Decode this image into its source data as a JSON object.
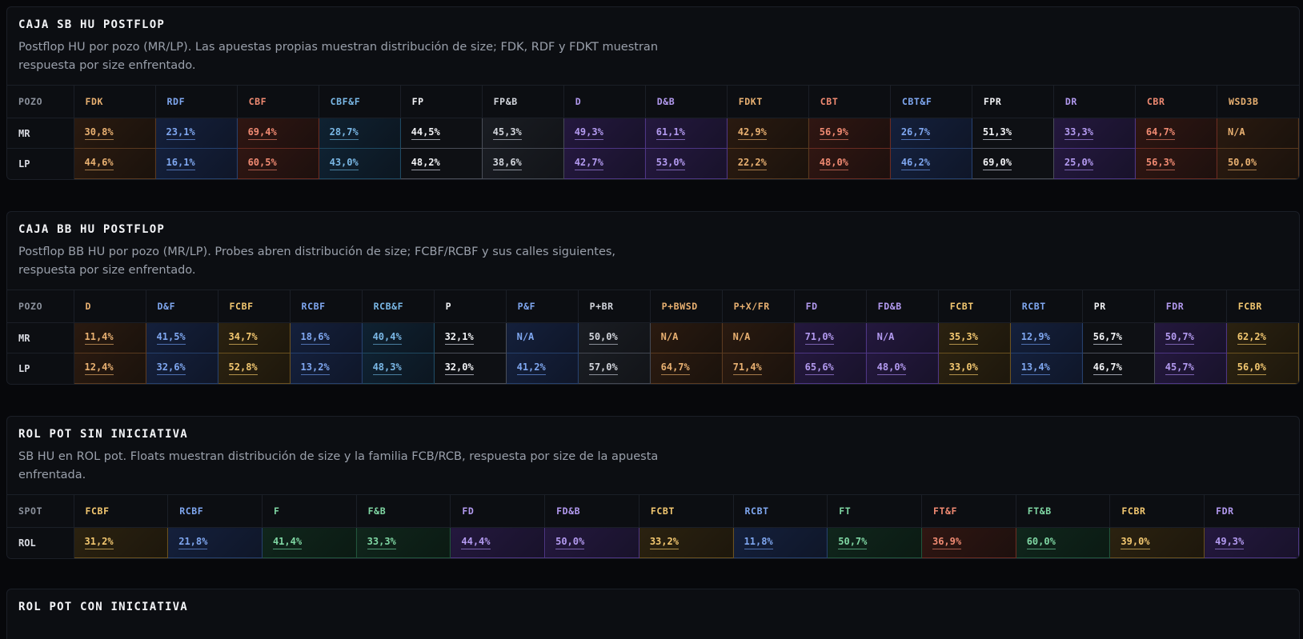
{
  "colors": {
    "background": "#07080b",
    "panel": "#0c0e12",
    "orange": "#e8b071",
    "blue": "#7fa7f0",
    "red": "#f08a72",
    "cyan": "#7ab8e6",
    "white": "#f1f2f5",
    "grey": "#d2d5dc",
    "purple": "#b39af0",
    "gold": "#f2c770",
    "green": "#7fd6a3"
  },
  "panels": [
    {
      "title": "CAJA SB HU POSTFLOP",
      "description": "Postflop HU por pozo (MR/LP). Las apuestas propias muestran distribución de size; FDK, RDF y FDKT muestran respuesta por size enfrentado.",
      "row_header": "POZO",
      "columns": [
        {
          "label": "FDK",
          "color": "orange"
        },
        {
          "label": "RDF",
          "color": "blue"
        },
        {
          "label": "CBF",
          "color": "red"
        },
        {
          "label": "CBF&F",
          "color": "cyan"
        },
        {
          "label": "FP",
          "color": "white"
        },
        {
          "label": "FP&B",
          "color": "grey"
        },
        {
          "label": "D",
          "color": "purple"
        },
        {
          "label": "D&B",
          "color": "purple"
        },
        {
          "label": "FDKT",
          "color": "orange"
        },
        {
          "label": "CBT",
          "color": "red"
        },
        {
          "label": "CBT&F",
          "color": "blue"
        },
        {
          "label": "FPR",
          "color": "white"
        },
        {
          "label": "DR",
          "color": "purple"
        },
        {
          "label": "CBR",
          "color": "red"
        },
        {
          "label": "WSD3B",
          "color": "orange"
        }
      ],
      "rows": [
        {
          "label": "MR",
          "values": [
            "30,8%",
            "23,1%",
            "69,4%",
            "28,7%",
            "44,5%",
            "45,3%",
            "49,3%",
            "61,1%",
            "42,9%",
            "56,9%",
            "26,7%",
            "51,3%",
            "33,3%",
            "64,7%",
            "N/A"
          ]
        },
        {
          "label": "LP",
          "values": [
            "44,6%",
            "16,1%",
            "60,5%",
            "43,0%",
            "48,2%",
            "38,6%",
            "42,7%",
            "53,0%",
            "22,2%",
            "48,0%",
            "46,2%",
            "69,0%",
            "25,0%",
            "56,3%",
            "50,0%"
          ]
        }
      ]
    },
    {
      "title": "CAJA BB HU POSTFLOP",
      "description": "Postflop BB HU por pozo (MR/LP). Probes abren distribución de size; FCBF/RCBF y sus calles siguientes, respuesta por size enfrentado.",
      "row_header": "POZO",
      "columns": [
        {
          "label": "D",
          "color": "orange"
        },
        {
          "label": "D&F",
          "color": "blue"
        },
        {
          "label": "FCBF",
          "color": "gold"
        },
        {
          "label": "RCBF",
          "color": "blue"
        },
        {
          "label": "RCB&F",
          "color": "cyan"
        },
        {
          "label": "P",
          "color": "white"
        },
        {
          "label": "P&F",
          "color": "blue"
        },
        {
          "label": "P+BR",
          "color": "grey"
        },
        {
          "label": "P+BWSD",
          "color": "orange"
        },
        {
          "label": "P+X/FR",
          "color": "orange"
        },
        {
          "label": "FD",
          "color": "purple"
        },
        {
          "label": "FD&B",
          "color": "purple"
        },
        {
          "label": "FCBT",
          "color": "gold"
        },
        {
          "label": "RCBT",
          "color": "blue"
        },
        {
          "label": "PR",
          "color": "white"
        },
        {
          "label": "FDR",
          "color": "purple"
        },
        {
          "label": "FCBR",
          "color": "gold"
        }
      ],
      "rows": [
        {
          "label": "MR",
          "values": [
            "11,4%",
            "41,5%",
            "34,7%",
            "18,6%",
            "40,4%",
            "32,1%",
            "N/A",
            "50,0%",
            "N/A",
            "N/A",
            "71,0%",
            "N/A",
            "35,3%",
            "12,9%",
            "56,7%",
            "50,7%",
            "62,2%"
          ]
        },
        {
          "label": "LP",
          "values": [
            "12,4%",
            "32,6%",
            "52,8%",
            "13,2%",
            "48,3%",
            "32,0%",
            "41,2%",
            "57,0%",
            "64,7%",
            "71,4%",
            "65,6%",
            "48,0%",
            "33,0%",
            "13,4%",
            "46,7%",
            "45,7%",
            "56,0%"
          ]
        }
      ]
    },
    {
      "title": "ROL POT SIN INICIATIVA",
      "description": "SB HU en ROL pot. Floats muestran distribución de size y la familia FCB/RCB, respuesta por size de la apuesta enfrentada.",
      "row_header": "SPOT",
      "columns": [
        {
          "label": "FCBF",
          "color": "gold"
        },
        {
          "label": "RCBF",
          "color": "blue"
        },
        {
          "label": "F",
          "color": "green"
        },
        {
          "label": "F&B",
          "color": "green"
        },
        {
          "label": "FD",
          "color": "purple"
        },
        {
          "label": "FD&B",
          "color": "purple"
        },
        {
          "label": "FCBT",
          "color": "gold"
        },
        {
          "label": "RCBT",
          "color": "blue"
        },
        {
          "label": "FT",
          "color": "green"
        },
        {
          "label": "FT&F",
          "color": "red"
        },
        {
          "label": "FT&B",
          "color": "green"
        },
        {
          "label": "FCBR",
          "color": "gold"
        },
        {
          "label": "FDR",
          "color": "purple"
        }
      ],
      "rows": [
        {
          "label": "ROL",
          "values": [
            "31,2%",
            "21,8%",
            "41,4%",
            "33,3%",
            "44,4%",
            "50,0%",
            "33,2%",
            "11,8%",
            "50,7%",
            "36,9%",
            "60,0%",
            "39,0%",
            "49,3%"
          ]
        }
      ]
    },
    {
      "title": "ROL POT CON INICIATIVA"
    }
  ]
}
